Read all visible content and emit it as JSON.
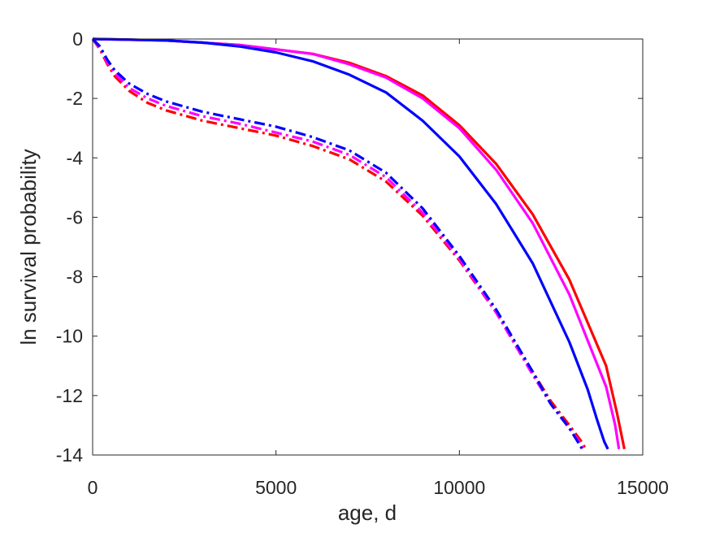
{
  "chart_data": {
    "type": "line",
    "xlabel": "age, d",
    "ylabel": "ln survival probability",
    "xlim": [
      0,
      15000
    ],
    "ylim": [
      -14,
      0
    ],
    "xticks": [
      0,
      5000,
      10000,
      15000
    ],
    "yticks": [
      0,
      -2,
      -4,
      -6,
      -8,
      -10,
      -12,
      -14
    ],
    "xtick_labels": [
      "0",
      "5000",
      "10000",
      "15000"
    ],
    "ytick_labels": [
      "0",
      "-2",
      "-4",
      "-6",
      "-8",
      "-10",
      "-12",
      "-14"
    ],
    "grid": false,
    "legend": "none",
    "series": [
      {
        "color": "#ff0000",
        "style": "solid",
        "x": [
          0,
          2000,
          4000,
          6000,
          7000,
          8000,
          9000,
          10000,
          11000,
          12000,
          13000,
          14000,
          14300,
          14500
        ],
        "y": [
          0,
          -0.05,
          -0.2,
          -0.5,
          -0.8,
          -1.25,
          -1.9,
          -2.9,
          -4.2,
          -5.9,
          -8.1,
          -11.0,
          -12.6,
          -13.8
        ]
      },
      {
        "color": "#ff00ff",
        "style": "solid",
        "x": [
          0,
          2000,
          4000,
          6000,
          7000,
          8000,
          9000,
          10000,
          11000,
          12000,
          13000,
          14000,
          14250,
          14350
        ],
        "y": [
          0,
          -0.05,
          -0.2,
          -0.5,
          -0.85,
          -1.3,
          -2.0,
          -3.0,
          -4.4,
          -6.2,
          -8.6,
          -11.7,
          -13.0,
          -13.8
        ]
      },
      {
        "color": "#0000ff",
        "style": "solid",
        "x": [
          0,
          1000,
          2000,
          3000,
          4000,
          5000,
          6000,
          7000,
          8000,
          9000,
          10000,
          11000,
          12000,
          13000,
          13500,
          13750,
          13950,
          14050
        ],
        "y": [
          0,
          -0.02,
          -0.05,
          -0.12,
          -0.25,
          -0.45,
          -0.75,
          -1.2,
          -1.8,
          -2.75,
          -3.95,
          -5.55,
          -7.55,
          -10.2,
          -11.8,
          -12.8,
          -13.55,
          -13.8
        ]
      },
      {
        "color": "#ff0000",
        "style": "dashdot",
        "x": [
          0,
          200,
          400,
          600,
          1000,
          1500,
          2000,
          3000,
          4000,
          5000,
          6000,
          7000,
          8000,
          9000,
          10000,
          11000,
          12000,
          12500,
          13000,
          13300,
          13450
        ],
        "y": [
          0,
          -0.35,
          -0.85,
          -1.25,
          -1.75,
          -2.15,
          -2.4,
          -2.75,
          -3.0,
          -3.25,
          -3.6,
          -4.05,
          -4.8,
          -5.95,
          -7.45,
          -9.2,
          -11.2,
          -12.2,
          -13.0,
          -13.5,
          -13.8
        ]
      },
      {
        "color": "#ff00ff",
        "style": "dashdot",
        "x": [
          0,
          200,
          400,
          600,
          1000,
          1500,
          2000,
          3000,
          4000,
          5000,
          6000,
          7000,
          8000,
          9000,
          10000,
          11000,
          12000,
          12500,
          13000,
          13300,
          13400
        ],
        "y": [
          0,
          -0.3,
          -0.8,
          -1.15,
          -1.65,
          -2.0,
          -2.25,
          -2.6,
          -2.85,
          -3.15,
          -3.45,
          -3.9,
          -4.65,
          -5.85,
          -7.4,
          -9.2,
          -11.3,
          -12.3,
          -13.1,
          -13.6,
          -13.8
        ]
      },
      {
        "color": "#0000ff",
        "style": "dashdot",
        "x": [
          0,
          200,
          400,
          600,
          1000,
          1500,
          2000,
          3000,
          4000,
          5000,
          6000,
          7000,
          8000,
          9000,
          10000,
          11000,
          12000,
          12500,
          13000,
          13200,
          13350
        ],
        "y": [
          0,
          -0.25,
          -0.7,
          -1.05,
          -1.5,
          -1.85,
          -2.1,
          -2.45,
          -2.7,
          -2.95,
          -3.3,
          -3.75,
          -4.5,
          -5.7,
          -7.3,
          -9.1,
          -11.2,
          -12.3,
          -13.1,
          -13.5,
          -13.8
        ]
      }
    ]
  }
}
